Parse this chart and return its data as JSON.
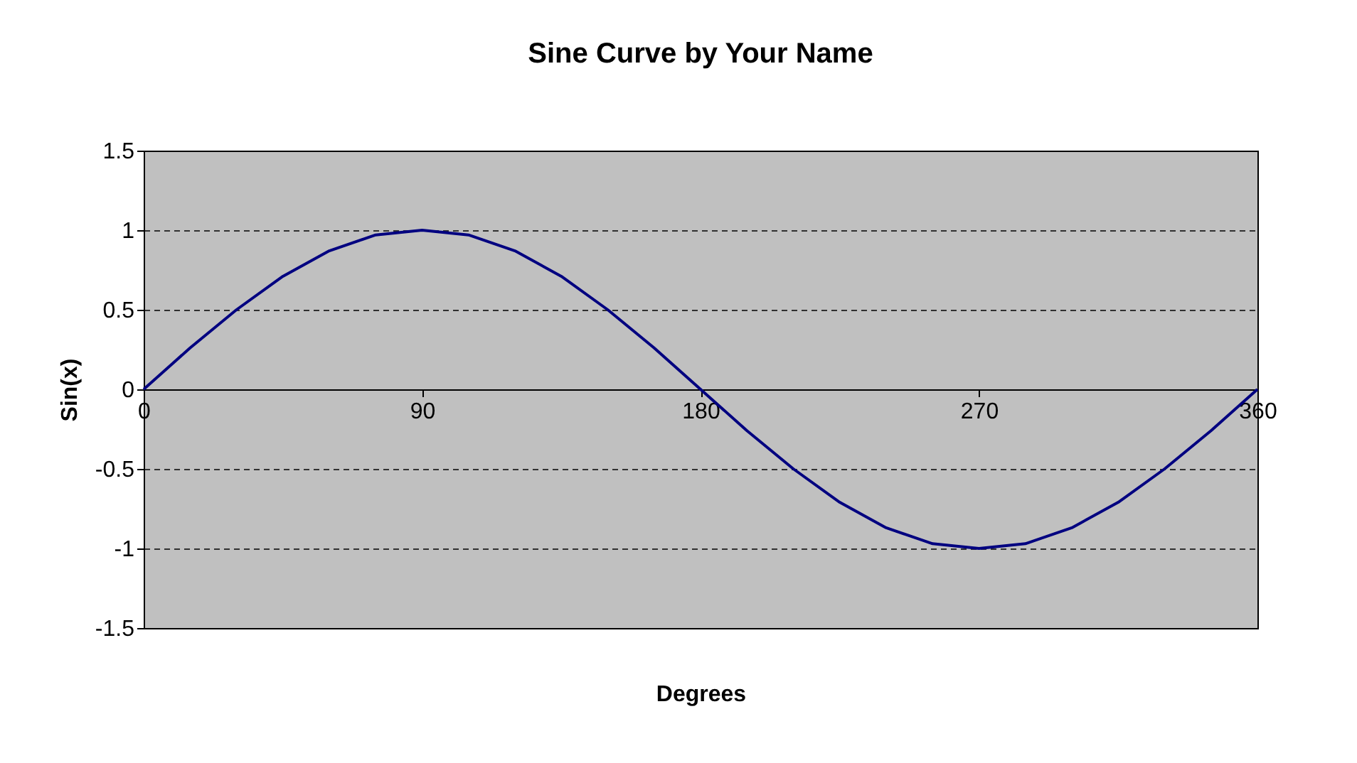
{
  "chart_data": {
    "type": "line",
    "title": "Sine Curve by Your Name",
    "xlabel": "Degrees",
    "ylabel": "Sin(x)",
    "x": [
      0,
      15,
      30,
      45,
      60,
      75,
      90,
      105,
      120,
      135,
      150,
      165,
      180,
      195,
      210,
      225,
      240,
      255,
      270,
      285,
      300,
      315,
      330,
      345,
      360
    ],
    "series": [
      {
        "color": "#000080",
        "values": [
          0,
          0.26,
          0.5,
          0.71,
          0.87,
          0.97,
          1,
          0.97,
          0.87,
          0.71,
          0.5,
          0.26,
          0,
          -0.26,
          -0.5,
          -0.71,
          -0.87,
          -0.97,
          -1,
          -0.97,
          -0.87,
          -0.71,
          -0.5,
          -0.26,
          0
        ]
      }
    ],
    "xlim": [
      0,
      360
    ],
    "xticks": [
      0,
      90,
      180,
      270,
      360
    ],
    "ylim": [
      -1.5,
      1.5
    ],
    "yticks": [
      -1.5,
      -1,
      -0.5,
      0,
      0.5,
      1,
      1.5
    ],
    "grid": "y",
    "marker": "none",
    "line_style": "solid"
  }
}
